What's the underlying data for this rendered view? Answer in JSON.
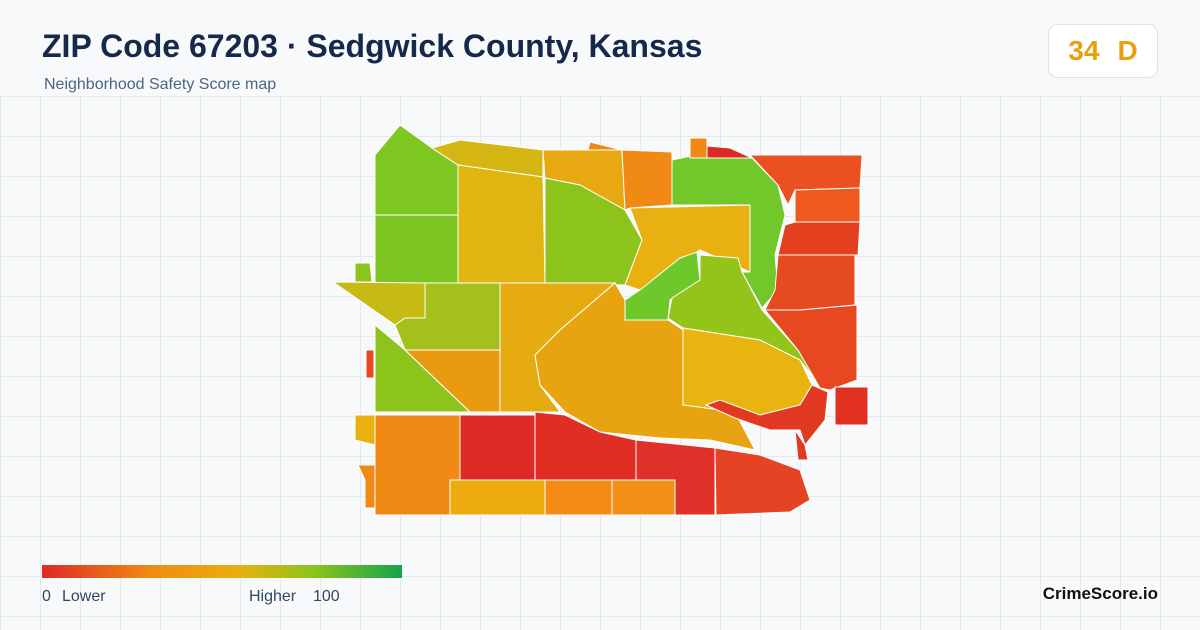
{
  "header": {
    "title": "ZIP Code 67203 · Sedgwick County, Kansas",
    "subtitle": "Neighborhood Safety Score map"
  },
  "score": {
    "value": 34,
    "grade": "D"
  },
  "legend": {
    "min": 0,
    "min_label": "Lower",
    "max_label": "Higher",
    "max": 100
  },
  "footer": {
    "brand": "CrimeScore.io"
  }
}
